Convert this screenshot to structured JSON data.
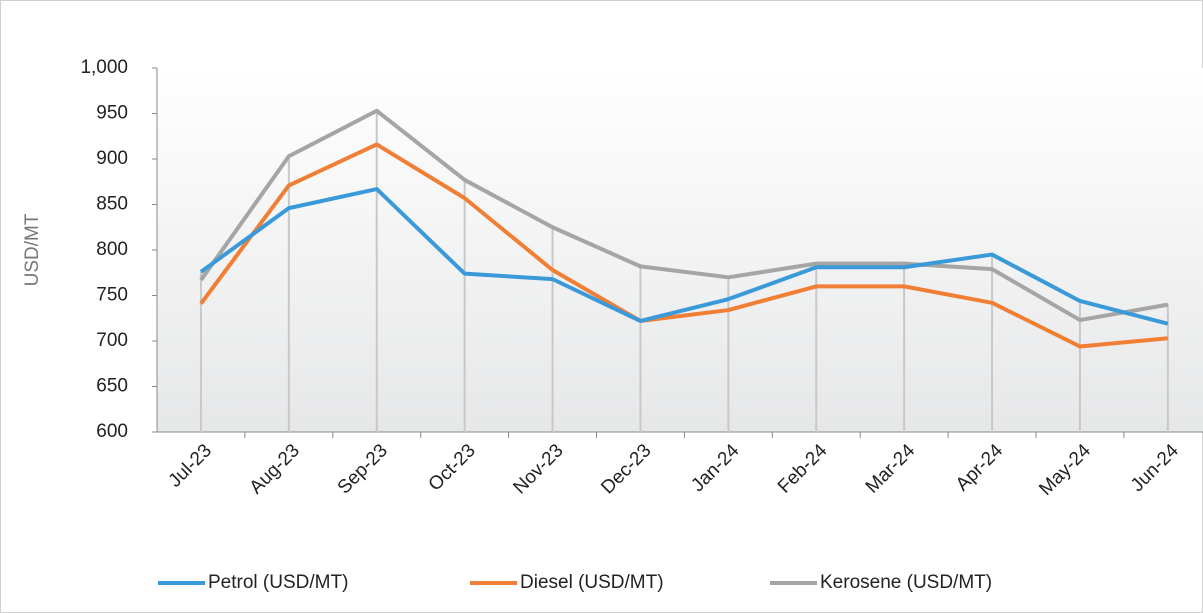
{
  "chart_data": {
    "type": "line",
    "y_label": "USD/MT",
    "categories": [
      "Jul-23",
      "Aug-23",
      "Sep-23",
      "Oct-23",
      "Nov-23",
      "Dec-23",
      "Jan-24",
      "Feb-24",
      "Mar-24",
      "Apr-24",
      "May-24",
      "Jun-24"
    ],
    "series": [
      {
        "name": "Petrol (USD/MT)",
        "color": "#3a9ad9",
        "values": [
          776,
          846,
          867,
          774,
          768,
          722,
          746,
          781,
          781,
          795,
          744,
          719
        ]
      },
      {
        "name": "Diesel (USD/MT)",
        "color": "#f07f35",
        "values": [
          741,
          871,
          916,
          857,
          778,
          722,
          734,
          760,
          760,
          742,
          694,
          703
        ]
      },
      {
        "name": "Kerosene (USD/MT)",
        "color": "#a5a5a5",
        "values": [
          767,
          903,
          953,
          877,
          825,
          782,
          770,
          785,
          785,
          779,
          723,
          740
        ]
      }
    ],
    "ylim": [
      600,
      1000
    ],
    "yticks": [
      600,
      650,
      700,
      750,
      800,
      850,
      900,
      950,
      {
        "value": 1000,
        "label": "1,000"
      }
    ],
    "legend": "bottom"
  }
}
